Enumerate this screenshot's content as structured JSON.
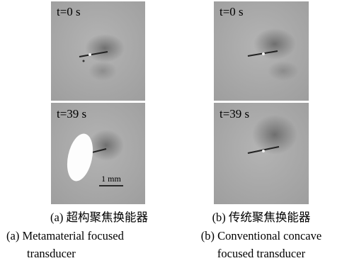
{
  "panels": [
    {
      "frames": [
        {
          "label": "t=0 s"
        },
        {
          "label": "t=39 s"
        }
      ],
      "scale_bar": "1 mm",
      "caption_zh": "(a) 超构聚焦换能器",
      "caption_en": [
        "(a) Metamaterial focused",
        "transducer"
      ]
    },
    {
      "frames": [
        {
          "label": "t=0 s"
        },
        {
          "label": "t=39 s"
        }
      ],
      "caption_zh": "(b) 传统聚焦换能器",
      "caption_en": [
        "(b) Conventional concave",
        "focused transducer"
      ]
    }
  ]
}
